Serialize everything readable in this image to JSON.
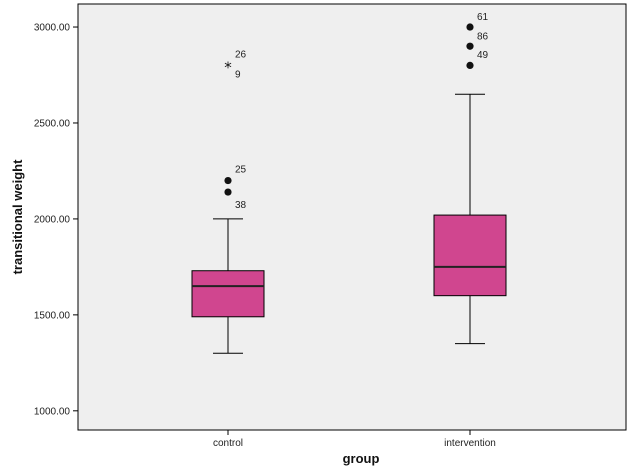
{
  "chart_data": {
    "type": "boxplot",
    "xlabel": "group",
    "ylabel": "transitional weight",
    "ylim": [
      900,
      3120
    ],
    "yticks": [
      1000,
      1500,
      2000,
      2500,
      3000
    ],
    "ytick_labels": [
      "1000.00",
      "1500.00",
      "2000.00",
      "2500.00",
      "3000.00"
    ],
    "categories": [
      "control",
      "intervention"
    ],
    "boxes": [
      {
        "category": "control",
        "whisker_low": 1300,
        "q1": 1490,
        "median": 1650,
        "q3": 1730,
        "whisker_high": 2000,
        "outliers": [
          {
            "value": 2200,
            "label": "25",
            "marker": "circle"
          },
          {
            "value": 2140,
            "label": "38",
            "marker": "circle"
          },
          {
            "value": 2800,
            "label": "26",
            "marker": "star"
          },
          {
            "value": 2800,
            "label": "9",
            "marker": "none"
          }
        ]
      },
      {
        "category": "intervention",
        "whisker_low": 1350,
        "q1": 1600,
        "median": 1750,
        "q3": 2020,
        "whisker_high": 2650,
        "outliers": [
          {
            "value": 3000,
            "label": "61",
            "marker": "circle"
          },
          {
            "value": 2950,
            "label": "86",
            "marker": "none"
          },
          {
            "value": 2900,
            "label": "49",
            "marker": "circle"
          },
          {
            "value": 2800,
            "label": "",
            "marker": "circle"
          }
        ]
      }
    ],
    "colors": {
      "box_fill": "#d0468f",
      "plot_background": "#efefef",
      "median_line": "#222222",
      "axis": "#000000"
    }
  }
}
